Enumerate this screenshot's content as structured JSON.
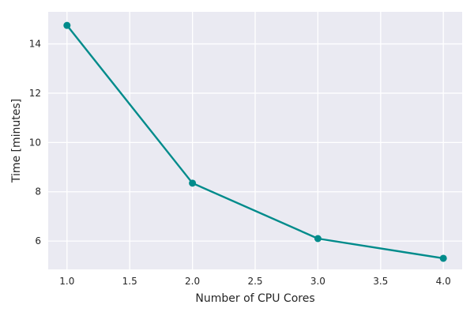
{
  "chart_data": {
    "type": "line",
    "title": "",
    "xlabel": "Number of CPU Cores",
    "ylabel": "Time [minutes]",
    "xlim": [
      0.85,
      4.15
    ],
    "ylim": [
      4.85,
      15.3
    ],
    "x_ticks": [
      1.0,
      1.5,
      2.0,
      2.5,
      3.0,
      3.5,
      4.0
    ],
    "x_tick_labels": [
      "1.0",
      "1.5",
      "2.0",
      "2.5",
      "3.0",
      "3.5",
      "4.0"
    ],
    "y_ticks": [
      6,
      8,
      10,
      12,
      14
    ],
    "y_tick_labels": [
      "6",
      "8",
      "10",
      "12",
      "14"
    ],
    "grid": true,
    "legend": "none",
    "colors": {
      "background": "#eaeaf2",
      "grid": "#ffffff",
      "line": "#008b8b"
    },
    "series": [
      {
        "x": [
          1.0,
          2.0,
          3.0,
          4.0
        ],
        "values": [
          14.75,
          8.35,
          6.1,
          5.3
        ]
      }
    ]
  }
}
